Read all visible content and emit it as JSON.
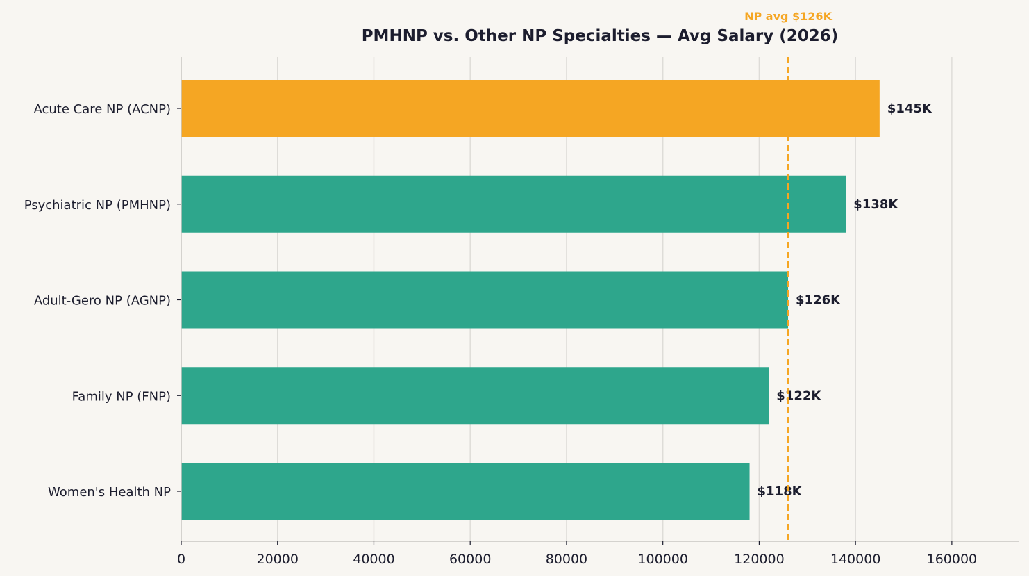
{
  "chart_data": {
    "type": "bar",
    "orientation": "horizontal",
    "title": "PMHNP vs. Other NP Specialties — Avg Salary (2026)",
    "xlabel": "",
    "ylabel": "",
    "categories": [
      "Acute Care NP (ACNP)",
      "Psychiatric NP (PMHNP)",
      "Adult-Gero NP (AGNP)",
      "Family NP (FNP)",
      "Women's Health NP"
    ],
    "values": [
      145000,
      138000,
      126000,
      122000,
      118000
    ],
    "data_labels": [
      "$145K",
      "$138K",
      "$126K",
      "$122K",
      "$118K"
    ],
    "bar_colors": [
      "#f5a623",
      "#2ea68c",
      "#2ea68c",
      "#2ea68c",
      "#2ea68c"
    ],
    "xlim": [
      0,
      174000
    ],
    "xticks": [
      0,
      20000,
      40000,
      60000,
      80000,
      100000,
      120000,
      140000,
      160000
    ],
    "grid": "vertical",
    "reference_line": {
      "value": 126000,
      "label": "NP avg $126K",
      "color": "#f5a623",
      "style": "dashed"
    }
  },
  "colors": {
    "background": "#f8f6f2",
    "text": "#1c1d2e",
    "grid": "#dedcd8",
    "axis": "#c8c6c2"
  }
}
